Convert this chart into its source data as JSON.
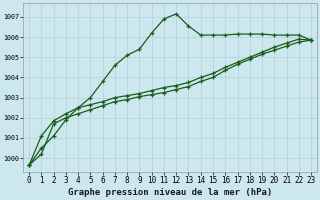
{
  "title": "Graphe pression niveau de la mer (hPa)",
  "bg_color": "#cce8ee",
  "grid_color": "#b8d8e0",
  "line_color": "#1a5c1a",
  "xlim": [
    -0.5,
    23.5
  ],
  "ylim": [
    999.3,
    1007.7
  ],
  "yticks": [
    1000,
    1001,
    1002,
    1003,
    1004,
    1005,
    1006,
    1007
  ],
  "xticks": [
    0,
    1,
    2,
    3,
    4,
    5,
    6,
    7,
    8,
    9,
    10,
    11,
    12,
    13,
    14,
    15,
    16,
    17,
    18,
    19,
    20,
    21,
    22,
    23
  ],
  "series": [
    [
      999.65,
      1000.5,
      1001.1,
      1001.9,
      1002.5,
      1003.0,
      1003.8,
      1004.6,
      1005.1,
      1005.4,
      1006.2,
      1006.9,
      1007.15,
      1006.55,
      1006.1,
      1006.1,
      1006.1,
      1006.15,
      1006.15,
      1006.15,
      1006.1,
      1006.1,
      1006.1,
      1005.85
    ],
    [
      999.65,
      1001.1,
      1001.85,
      1002.2,
      1002.5,
      1002.65,
      1002.8,
      1003.0,
      1003.1,
      1003.2,
      1003.35,
      1003.5,
      1003.6,
      1003.75,
      1004.0,
      1004.2,
      1004.5,
      1004.75,
      1005.0,
      1005.25,
      1005.5,
      1005.7,
      1005.9,
      1005.85
    ],
    [
      999.65,
      1000.2,
      1001.7,
      1002.0,
      1002.2,
      1002.4,
      1002.6,
      1002.8,
      1002.9,
      1003.05,
      1003.15,
      1003.25,
      1003.4,
      1003.55,
      1003.8,
      1004.0,
      1004.35,
      1004.65,
      1004.9,
      1005.15,
      1005.35,
      1005.55,
      1005.75,
      1005.85
    ]
  ],
  "marker": "+",
  "markersize": 3.5,
  "linewidth": 0.9,
  "markeredgewidth": 0.9,
  "title_fontsize": 6.5,
  "tick_fontsize": 4.8,
  "xlabel_fontsize": 5.5
}
